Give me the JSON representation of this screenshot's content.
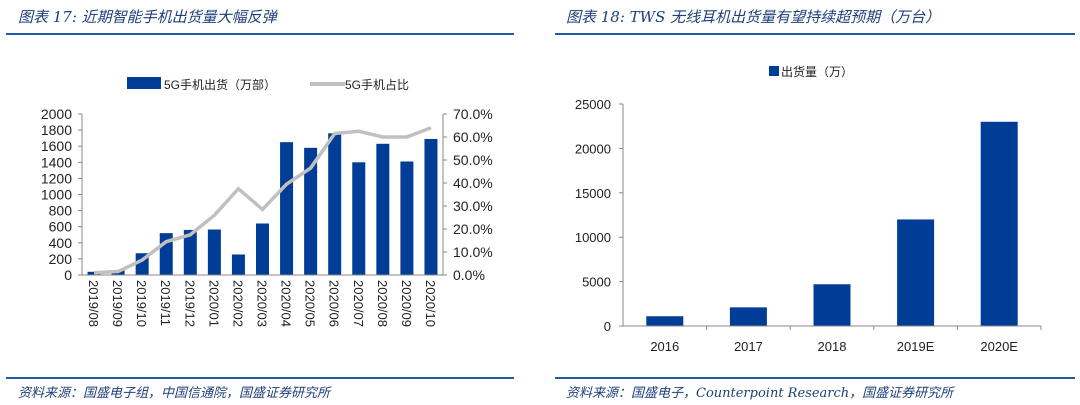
{
  "left": {
    "title": "图表 17:  近期智能手机出货量大幅反弹",
    "source": "资料来源：国盛电子组，中国信通院，国盛证券研究所"
  },
  "right": {
    "title": "图表 18:  TWS 无线耳机出货量有望持续超预期（万台）",
    "source": "资料来源：国盛电子，Counterpoint Research，国盛证券研究所"
  },
  "colors": {
    "bar": "#003d96",
    "line": "#c0c0c0",
    "accent": "#1f5aa8"
  },
  "chart_data": [
    {
      "type": "bar+line",
      "title": "近期智能手机出货量大幅反弹",
      "categories": [
        "2019/08",
        "2019/09",
        "2019/10",
        "2019/11",
        "2019/12",
        "2020/01",
        "2020/02",
        "2020/03",
        "2020/04",
        "2020/05",
        "2020/06",
        "2020/07",
        "2020/08",
        "2020/09",
        "2020/10"
      ],
      "series": [
        {
          "name": "5G手机出货（万部）",
          "type": "bar",
          "axis": "left",
          "values": [
            40,
            60,
            270,
            520,
            560,
            565,
            255,
            640,
            1650,
            1580,
            1760,
            1400,
            1630,
            1410,
            1690
          ]
        },
        {
          "name": "5G手机占比",
          "type": "line",
          "axis": "right",
          "values": [
            1.0,
            1.5,
            6.5,
            14.5,
            17.5,
            26.0,
            37.5,
            28.5,
            39.5,
            46.5,
            61.5,
            62.5,
            60.0,
            60.0,
            64.0
          ]
        }
      ],
      "ylim": [
        0,
        2000
      ],
      "yticks": [
        "0",
        "200",
        "400",
        "600",
        "800",
        "1000",
        "1200",
        "1400",
        "1600",
        "1800",
        "2000"
      ],
      "y2lim": [
        0,
        70
      ],
      "y2ticks": [
        "0.0%",
        "10.0%",
        "20.0%",
        "30.0%",
        "40.0%",
        "50.0%",
        "60.0%",
        "70.0%"
      ],
      "legend": "top"
    },
    {
      "type": "bar",
      "title": "TWS 无线耳机出货量有望持续超预期（万台）",
      "categories": [
        "2016",
        "2017",
        "2018",
        "2019E",
        "2020E"
      ],
      "series": [
        {
          "name": "出货量（万）",
          "values": [
            1100,
            2100,
            4700,
            12000,
            23000
          ]
        }
      ],
      "ylim": [
        0,
        25000
      ],
      "yticks": [
        "0",
        "5000",
        "10000",
        "15000",
        "20000",
        "25000"
      ],
      "legend": "top"
    }
  ]
}
